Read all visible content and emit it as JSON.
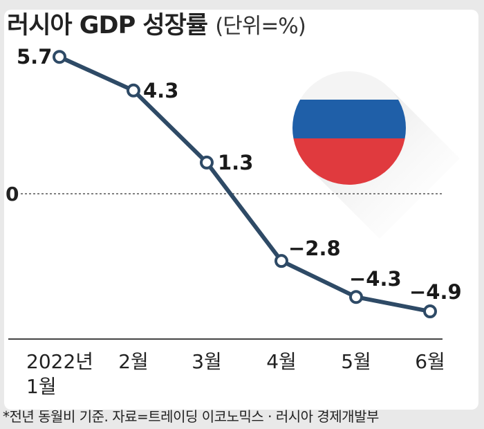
{
  "header": {
    "title": "러시아 GDP 성장률",
    "unit": "(단위=%)"
  },
  "footnote": "*전년 동월비 기준. 자료=트레이딩 이코노믹스 · 러시아 경제개발부",
  "colors": {
    "line": "#2e4a66",
    "marker_fill": "#ffffff",
    "flag_white": "#f4f4f4",
    "flag_blue": "#1f5fa8",
    "flag_red": "#e03a3e"
  },
  "icons": {
    "flag": "russia-flag-icon"
  },
  "chart_data": {
    "type": "line",
    "title": "러시아 GDP 성장률",
    "unit": "%",
    "categories": [
      "2022년\n1월",
      "2월",
      "3월",
      "4월",
      "5월",
      "6월"
    ],
    "values": [
      5.7,
      4.3,
      1.3,
      -2.8,
      -4.3,
      -4.9
    ],
    "data_labels": [
      "5.7",
      "4.3",
      "1.3",
      "−2.8",
      "−4.3",
      "−4.9"
    ],
    "y_ticks": [
      0
    ],
    "y_tick_labels": [
      "0"
    ],
    "reference_line": 0,
    "grid": false
  }
}
